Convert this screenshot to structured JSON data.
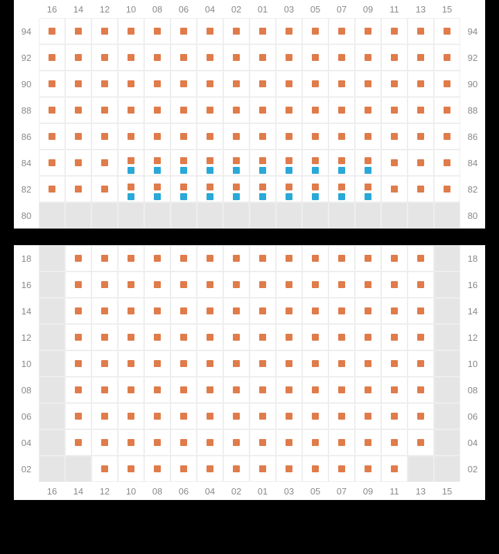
{
  "colors": {
    "seat_orange": "#e07b4a",
    "seat_blue": "#2aa8d8",
    "empty_cell": "#e5e5e5",
    "grid_line": "#eeeeee",
    "label": "#888888",
    "background": "#000000"
  },
  "layout": {
    "cell_size": 38,
    "seat_size": 10,
    "label_col_width": 36,
    "label_row_height": 26,
    "cols": 16
  },
  "column_labels": [
    "16",
    "14",
    "12",
    "10",
    "08",
    "06",
    "04",
    "02",
    "01",
    "03",
    "05",
    "07",
    "09",
    "11",
    "13",
    "15"
  ],
  "top_section": {
    "row_labels": [
      "94",
      "92",
      "90",
      "88",
      "86",
      "84",
      "82",
      "80"
    ],
    "rows": [
      [
        "o",
        "o",
        "o",
        "o",
        "o",
        "o",
        "o",
        "o",
        "o",
        "o",
        "o",
        "o",
        "o",
        "o",
        "o",
        "o"
      ],
      [
        "o",
        "o",
        "o",
        "o",
        "o",
        "o",
        "o",
        "o",
        "o",
        "o",
        "o",
        "o",
        "o",
        "o",
        "o",
        "o"
      ],
      [
        "o",
        "o",
        "o",
        "o",
        "o",
        "o",
        "o",
        "o",
        "o",
        "o",
        "o",
        "o",
        "o",
        "o",
        "o",
        "o"
      ],
      [
        "o",
        "o",
        "o",
        "o",
        "o",
        "o",
        "o",
        "o",
        "o",
        "o",
        "o",
        "o",
        "o",
        "o",
        "o",
        "o"
      ],
      [
        "o",
        "o",
        "o",
        "o",
        "o",
        "o",
        "o",
        "o",
        "o",
        "o",
        "o",
        "o",
        "o",
        "o",
        "o",
        "o"
      ],
      [
        "o",
        "o",
        "o",
        "d",
        "d",
        "d",
        "d",
        "d",
        "d",
        "d",
        "d",
        "d",
        "d",
        "o",
        "o",
        "o"
      ],
      [
        "o",
        "o",
        "o",
        "d",
        "d",
        "d",
        "d",
        "d",
        "d",
        "d",
        "d",
        "d",
        "d",
        "o",
        "o",
        "o"
      ],
      [
        "e",
        "e",
        "e",
        "e",
        "e",
        "e",
        "e",
        "e",
        "e",
        "e",
        "e",
        "e",
        "e",
        "e",
        "e",
        "e"
      ]
    ]
  },
  "bottom_section": {
    "row_labels": [
      "18",
      "16",
      "14",
      "12",
      "10",
      "08",
      "06",
      "04",
      "02"
    ],
    "rows": [
      [
        "e",
        "o",
        "o",
        "o",
        "o",
        "o",
        "o",
        "o",
        "o",
        "o",
        "o",
        "o",
        "o",
        "o",
        "o",
        "e"
      ],
      [
        "e",
        "o",
        "o",
        "o",
        "o",
        "o",
        "o",
        "o",
        "o",
        "o",
        "o",
        "o",
        "o",
        "o",
        "o",
        "e"
      ],
      [
        "e",
        "o",
        "o",
        "o",
        "o",
        "o",
        "o",
        "o",
        "o",
        "o",
        "o",
        "o",
        "o",
        "o",
        "o",
        "e"
      ],
      [
        "e",
        "o",
        "o",
        "o",
        "o",
        "o",
        "o",
        "o",
        "o",
        "o",
        "o",
        "o",
        "o",
        "o",
        "o",
        "e"
      ],
      [
        "e",
        "o",
        "o",
        "o",
        "o",
        "o",
        "o",
        "o",
        "o",
        "o",
        "o",
        "o",
        "o",
        "o",
        "o",
        "e"
      ],
      [
        "e",
        "o",
        "o",
        "o",
        "o",
        "o",
        "o",
        "o",
        "o",
        "o",
        "o",
        "o",
        "o",
        "o",
        "o",
        "e"
      ],
      [
        "e",
        "o",
        "o",
        "o",
        "o",
        "o",
        "o",
        "o",
        "o",
        "o",
        "o",
        "o",
        "o",
        "o",
        "o",
        "e"
      ],
      [
        "e",
        "o",
        "o",
        "o",
        "o",
        "o",
        "o",
        "o",
        "o",
        "o",
        "o",
        "o",
        "o",
        "o",
        "o",
        "e"
      ],
      [
        "e",
        "e",
        "o",
        "o",
        "o",
        "o",
        "o",
        "o",
        "o",
        "o",
        "o",
        "o",
        "o",
        "o",
        "e",
        "e"
      ]
    ]
  }
}
